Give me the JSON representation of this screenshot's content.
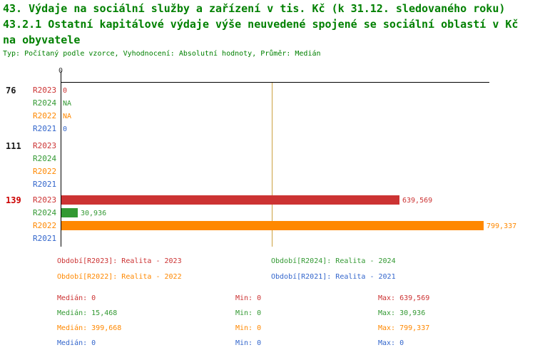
{
  "header": {
    "title_line1": "43. Výdaje na sociální služby a zařízení v tis. Kč (k 31.12. sledovaného roku)",
    "title_line2": "43.2.1 Ostatní kapitálové výdaje výše neuvedené spojené se sociální oblastí v Kč",
    "title_line3": "na obyvatele",
    "meta": "Typ: Počítaný podle vzorce, Vyhodnocení: Absolutní hodnoty, Průměr: Medián"
  },
  "colors": {
    "title": "#008000",
    "r2023": "#cc3333",
    "r2024": "#339933",
    "r2022": "#ff8800",
    "r2021": "#3366cc",
    "group": "#1a1a1a",
    "highlight": "#cc0000",
    "median": "#cca040",
    "axis": "#000000",
    "tick": "#333333"
  },
  "chart_data": {
    "type": "bar",
    "orientation": "horizontal",
    "title": "43.2.1 Ostatní kapitálové výdaje výše neuvedené spojené se sociální oblastí v Kč na obyvatele",
    "xlim": [
      0,
      810000
    ],
    "axis_tick_label": "0",
    "median_line_value": 399668,
    "series_names": [
      "R2023",
      "R2024",
      "R2022",
      "R2021"
    ],
    "groups": [
      {
        "label": "76",
        "highlight": false,
        "rows": [
          {
            "series": "R2023",
            "value": 0,
            "value_label": "0"
          },
          {
            "series": "R2024",
            "value": null,
            "value_label": "NA"
          },
          {
            "series": "R2022",
            "value": null,
            "value_label": "NA"
          },
          {
            "series": "R2021",
            "value": 0,
            "value_label": "0"
          }
        ]
      },
      {
        "label": "111",
        "highlight": false,
        "rows": [
          {
            "series": "R2023",
            "value": 0,
            "value_label": ""
          },
          {
            "series": "R2024",
            "value": 0,
            "value_label": ""
          },
          {
            "series": "R2022",
            "value": 0,
            "value_label": ""
          },
          {
            "series": "R2021",
            "value": 0,
            "value_label": ""
          }
        ]
      },
      {
        "label": "139",
        "highlight": true,
        "rows": [
          {
            "series": "R2023",
            "value": 639569,
            "value_label": "639,569"
          },
          {
            "series": "R2024",
            "value": 30936,
            "value_label": "30,936"
          },
          {
            "series": "R2022",
            "value": 799337,
            "value_label": "799,337"
          },
          {
            "series": "R2021",
            "value": 0,
            "value_label": ""
          }
        ]
      }
    ],
    "legend": [
      {
        "series": "R2023",
        "label": "Období[R2023]: Realita - 2023"
      },
      {
        "series": "R2024",
        "label": "Období[R2024]: Realita - 2024"
      },
      {
        "series": "R2022",
        "label": "Období[R2022]: Realita - 2022"
      },
      {
        "series": "R2021",
        "label": "Období[R2021]: Realita - 2021"
      }
    ],
    "stats": [
      {
        "series": "R2023",
        "median": "Medián: 0",
        "min": "Min: 0",
        "max": "Max: 639,569"
      },
      {
        "series": "R2024",
        "median": "Medián: 15,468",
        "min": "Min: 0",
        "max": "Max: 30,936"
      },
      {
        "series": "R2022",
        "median": "Medián: 399,668",
        "min": "Min: 0",
        "max": "Max: 799,337"
      },
      {
        "series": "R2021",
        "median": "Medián: 0",
        "min": "Min: 0",
        "max": "Max: 0"
      }
    ]
  }
}
